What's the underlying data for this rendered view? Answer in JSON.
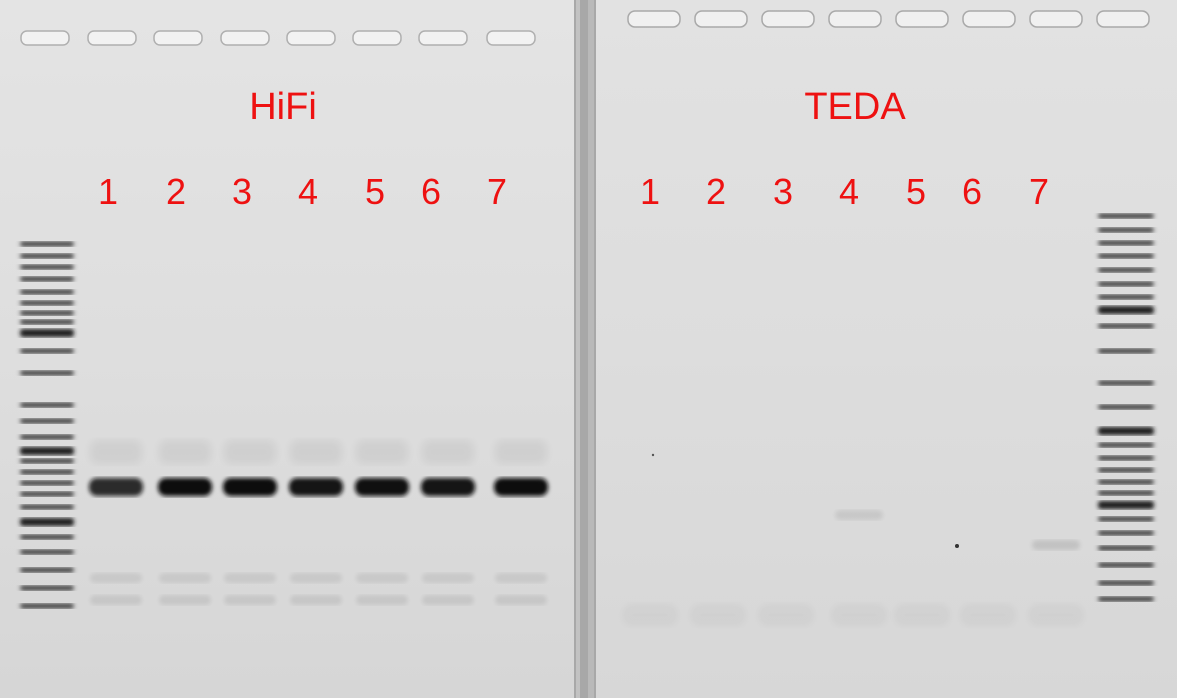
{
  "gel_left": {
    "title": "HiFi",
    "lanes": [
      "1",
      "2",
      "3",
      "4",
      "5",
      "6",
      "7"
    ],
    "product_band_intensity": [
      0.8,
      1.0,
      1.0,
      0.95,
      0.98,
      0.95,
      1.0
    ]
  },
  "gel_right": {
    "title": "TEDA",
    "lanes": [
      "1",
      "2",
      "3",
      "4",
      "5",
      "6",
      "7"
    ],
    "product_band_intensity": [
      0,
      0,
      0,
      0.08,
      0,
      0,
      0.1
    ]
  },
  "colors": {
    "gel_background": "#dcdcdc",
    "divider": "#a9a9a9",
    "band": "#111111",
    "label": "#ee1111"
  }
}
